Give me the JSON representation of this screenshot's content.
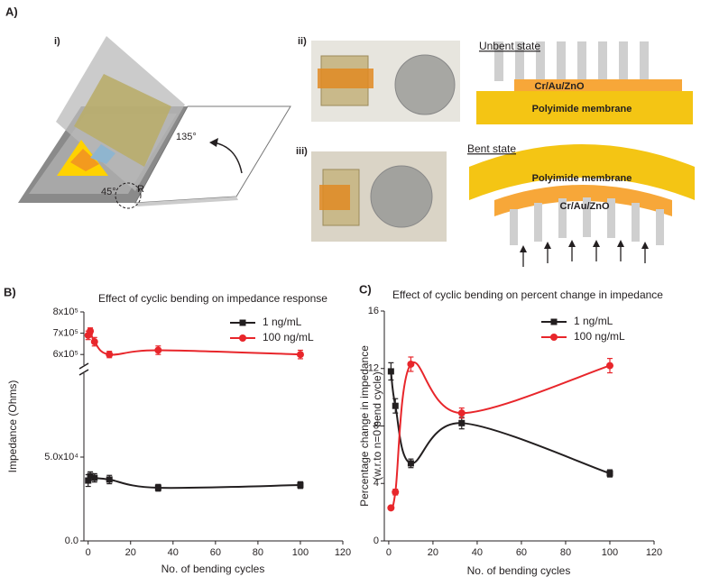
{
  "figure": {
    "panel_a": {
      "label": "A)",
      "sub_i": "i)",
      "sub_ii": "ii)",
      "sub_iii": "iii)",
      "unbent_title": "Unbent state",
      "bent_title": "Bent state",
      "unbent_layer": "Cr/Au/ZnO",
      "unbent_substrate": "Polyimide membrane",
      "bent_layer": "Cr/Au/ZnO",
      "bent_substrate": "Polyimide membrane",
      "angle_open": "135°",
      "angle_base": "45°",
      "radius": "R"
    }
  },
  "chart_data": [
    {
      "type": "line",
      "panel_label": "B)",
      "title": "Effect of cyclic bending on impedance response",
      "x_label": "No. of bending cycles",
      "y_label": [
        "Impedance (Ohms)"
      ],
      "xlim": [
        -2,
        120
      ],
      "xticks": [
        0,
        20,
        40,
        60,
        80,
        100,
        120
      ],
      "ylim": [
        0,
        800000
      ],
      "y_break": [
        100000,
        550000
      ],
      "yticks": [
        {
          "value": 0,
          "label": "0.0"
        },
        {
          "value": 50000,
          "label": "5.0x10⁴"
        },
        {
          "value": 600000,
          "label": "6x10⁵"
        },
        {
          "value": 700000,
          "label": "7x10⁵"
        },
        {
          "value": 800000,
          "label": "8x10⁵"
        }
      ],
      "legend": "upper right",
      "smooth": true,
      "series": [
        {
          "name": "1 ng/mL",
          "color": "#231f20",
          "marker": "square",
          "x": [
            0,
            1,
            3,
            10,
            33,
            100
          ],
          "values": [
            36000,
            38700,
            37600,
            36600,
            31700,
            33300
          ],
          "errors": [
            3500,
            2500,
            2500,
            2500,
            2000,
            2000
          ]
        },
        {
          "name": "100 ng/mL",
          "color": "#e8262b",
          "marker": "circle",
          "x": [
            0,
            1,
            3,
            10,
            33,
            100
          ],
          "values": [
            690000,
            710000,
            660000,
            600000,
            620000,
            600000
          ],
          "errors": [
            20000,
            15000,
            20000,
            15000,
            20000,
            20000
          ]
        }
      ]
    },
    {
      "type": "line",
      "panel_label": "C)",
      "title": "Effect of cyclic bending on percent change in impedance",
      "x_label": "No. of bending cycles",
      "y_label": [
        "Percentage change in impedance",
        "(w.r.to n=0 bend cycle)"
      ],
      "xlim": [
        -2,
        120
      ],
      "xticks": [
        0,
        20,
        40,
        60,
        80,
        100,
        120
      ],
      "ylim": [
        0,
        16
      ],
      "yticks": [
        0,
        4,
        8,
        12,
        16
      ],
      "legend": "upper right",
      "smooth": true,
      "series": [
        {
          "name": "1 ng/mL",
          "color": "#231f20",
          "marker": "square",
          "x": [
            1,
            3,
            10,
            33,
            100
          ],
          "values": [
            11.8,
            9.4,
            5.4,
            8.2,
            4.7
          ],
          "errors": [
            0.6,
            0.5,
            0.3,
            0.4,
            0.25
          ]
        },
        {
          "name": "100 ng/mL",
          "color": "#e8262b",
          "marker": "circle",
          "x": [
            1,
            3,
            10,
            33,
            100
          ],
          "values": [
            2.3,
            3.4,
            12.3,
            8.9,
            12.2
          ],
          "errors": [
            0.1,
            0.2,
            0.5,
            0.35,
            0.5
          ]
        }
      ]
    }
  ]
}
